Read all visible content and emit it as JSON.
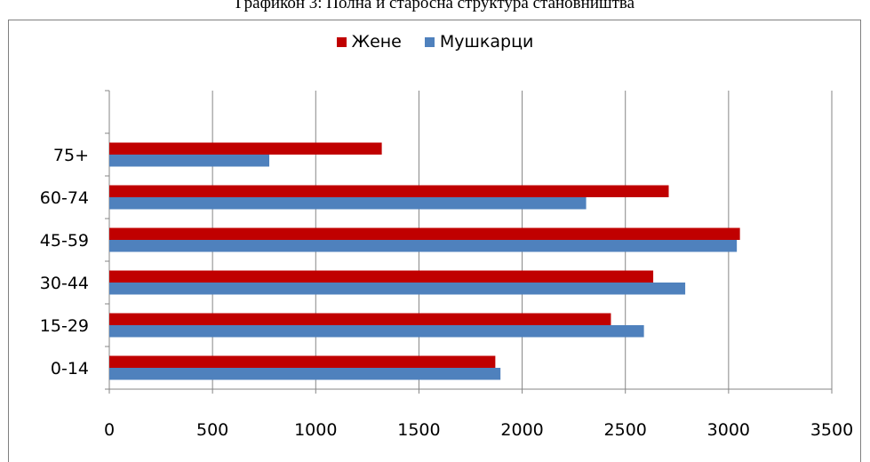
{
  "chart_data": {
    "type": "bar",
    "orientation": "horizontal",
    "title": "Графикон 3: Полна и старосна структура становништва",
    "categories": [
      "0-14",
      "15-29",
      "30-44",
      "45-59",
      "60-74",
      "75+"
    ],
    "series": [
      {
        "name": "Жене",
        "color": "#c00000",
        "values": [
          1870,
          2430,
          2635,
          3055,
          2710,
          1320
        ]
      },
      {
        "name": "Мушкарци",
        "color": "#4f81bd",
        "values": [
          1895,
          2590,
          2790,
          3040,
          2310,
          775
        ]
      }
    ],
    "xlim": [
      0,
      3500
    ],
    "xticks": [
      0,
      500,
      1000,
      1500,
      2000,
      2500,
      3000,
      3500
    ],
    "grid": true,
    "legend_position": "top"
  }
}
